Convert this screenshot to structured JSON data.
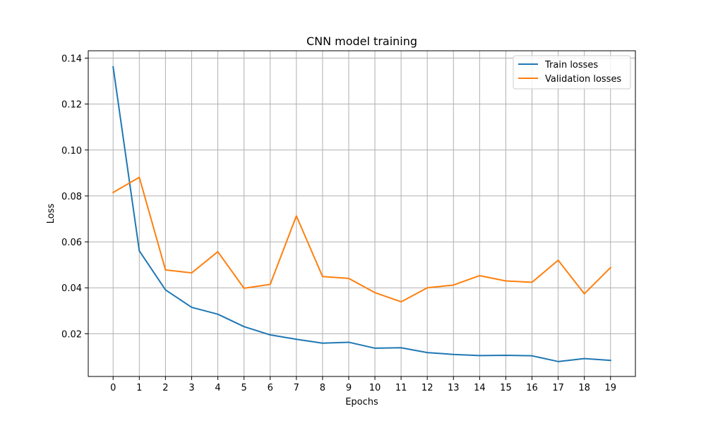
{
  "chart_data": {
    "type": "line",
    "title": "CNN model training",
    "xlabel": "Epochs",
    "ylabel": "Loss",
    "x": [
      0,
      1,
      2,
      3,
      4,
      5,
      6,
      7,
      8,
      9,
      10,
      11,
      12,
      13,
      14,
      15,
      16,
      17,
      18,
      19
    ],
    "xlim": [
      -0.95,
      19.95
    ],
    "ylim": [
      0.0014,
      0.1432
    ],
    "yticks": [
      0.02,
      0.04,
      0.06,
      0.08,
      0.1,
      0.12,
      0.14
    ],
    "ytick_labels": [
      "0.02",
      "0.04",
      "0.06",
      "0.08",
      "0.10",
      "0.12",
      "0.14"
    ],
    "grid": true,
    "legend_position": "upper right",
    "series": [
      {
        "name": "Train losses",
        "color": "#1f77b4",
        "values": [
          0.1362,
          0.0561,
          0.0391,
          0.0315,
          0.0285,
          0.0231,
          0.0195,
          0.0176,
          0.0159,
          0.0163,
          0.0137,
          0.0139,
          0.0118,
          0.011,
          0.0105,
          0.0106,
          0.0104,
          0.0079,
          0.0092,
          0.0084
        ]
      },
      {
        "name": "Validation losses",
        "color": "#ff7f0e",
        "values": [
          0.0815,
          0.0881,
          0.0478,
          0.0465,
          0.0557,
          0.0398,
          0.0415,
          0.0713,
          0.0449,
          0.0441,
          0.0379,
          0.0339,
          0.04,
          0.0412,
          0.0453,
          0.043,
          0.0424,
          0.052,
          0.0374,
          0.0488
        ]
      }
    ]
  }
}
